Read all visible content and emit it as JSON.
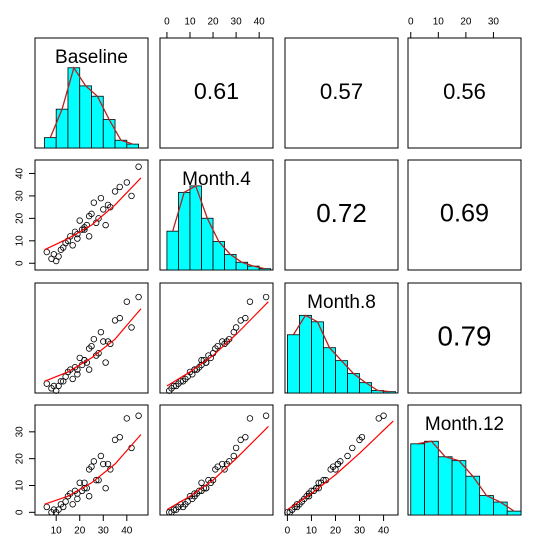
{
  "chart_data": {
    "type": "pairs",
    "variables": [
      "Baseline",
      "Month.4",
      "Month.8",
      "Month.12"
    ],
    "lims": [
      [
        1,
        49
      ],
      [
        -3,
        46
      ],
      [
        -1,
        46
      ],
      [
        -1,
        40
      ]
    ],
    "ticks": [
      [
        10,
        20,
        30,
        40
      ],
      [
        0,
        10,
        20,
        30,
        40
      ],
      [
        0,
        10,
        20,
        30,
        40
      ],
      [
        0,
        10,
        20,
        30
      ]
    ],
    "correlations": [
      0.61,
      0.57,
      0.56,
      0.72,
      0.69,
      0.79
    ],
    "observations": [
      [
        12,
        18,
        22,
        25,
        9,
        30,
        15,
        20,
        28,
        35,
        17,
        23,
        19,
        14,
        26,
        40,
        11,
        21,
        24,
        32,
        16,
        27,
        13,
        29,
        45,
        8,
        33,
        19,
        22,
        37,
        6,
        31,
        10,
        24,
        42
      ],
      [
        6,
        14,
        16,
        22,
        4,
        24,
        10,
        19,
        20,
        32,
        8,
        17,
        13,
        9,
        27,
        36,
        3,
        15,
        21,
        26,
        12,
        18,
        7,
        29,
        43,
        2,
        25,
        11,
        15,
        34,
        5,
        17,
        1,
        12,
        30
      ],
      [
        4,
        10,
        13,
        19,
        2,
        21,
        8,
        14,
        16,
        30,
        5,
        12,
        9,
        6,
        22,
        38,
        2,
        11,
        18,
        21,
        9,
        15,
        4,
        25,
        40,
        1,
        20,
        7,
        13,
        31,
        3,
        12,
        0,
        9,
        27
      ],
      [
        3,
        8,
        9,
        17,
        1,
        18,
        6,
        11,
        12,
        27,
        3,
        9,
        7,
        4,
        19,
        35,
        1,
        8,
        16,
        18,
        7,
        12,
        2,
        21,
        36,
        0,
        16,
        5,
        11,
        28,
        2,
        9,
        0,
        6,
        24
      ]
    ],
    "fits": [
      {
        "x": [
          5,
          15,
          25,
          35,
          46
        ],
        "y": [
          6,
          11,
          17,
          26,
          38
        ]
      },
      {
        "x": [
          5,
          15,
          25,
          35,
          46
        ],
        "y": [
          4,
          8,
          14,
          22,
          35
        ]
      },
      {
        "x": [
          0,
          10,
          20,
          30,
          44
        ],
        "y": [
          2,
          8,
          15,
          24,
          38
        ]
      },
      {
        "x": [
          5,
          15,
          25,
          35,
          46
        ],
        "y": [
          3,
          6,
          11,
          18,
          29
        ]
      },
      {
        "x": [
          0,
          10,
          20,
          30,
          44
        ],
        "y": [
          1,
          6,
          12,
          20,
          32
        ]
      },
      {
        "x": [
          0,
          10,
          20,
          30,
          44
        ],
        "y": [
          1,
          7,
          14,
          22,
          34
        ]
      }
    ],
    "hist_ylim": [
      0,
      85
    ],
    "histograms": [
      {
        "bins": [
          5,
          10,
          15,
          20,
          25,
          30,
          35,
          40,
          45
        ],
        "counts": [
          8,
          30,
          62,
          48,
          40,
          22,
          6,
          3
        ]
      },
      {
        "bins": [
          0,
          5,
          10,
          15,
          20,
          25,
          30,
          35,
          40,
          45
        ],
        "counts": [
          30,
          60,
          65,
          40,
          22,
          12,
          6,
          3,
          1
        ]
      },
      {
        "bins": [
          0,
          5,
          10,
          15,
          20,
          25,
          30,
          35,
          40,
          45
        ],
        "counts": [
          45,
          60,
          55,
          35,
          25,
          15,
          8,
          2,
          1
        ]
      },
      {
        "bins": [
          0,
          5,
          10,
          15,
          20,
          25,
          30,
          35,
          40
        ],
        "counts": [
          55,
          57,
          45,
          42,
          30,
          15,
          10,
          3
        ]
      }
    ]
  }
}
